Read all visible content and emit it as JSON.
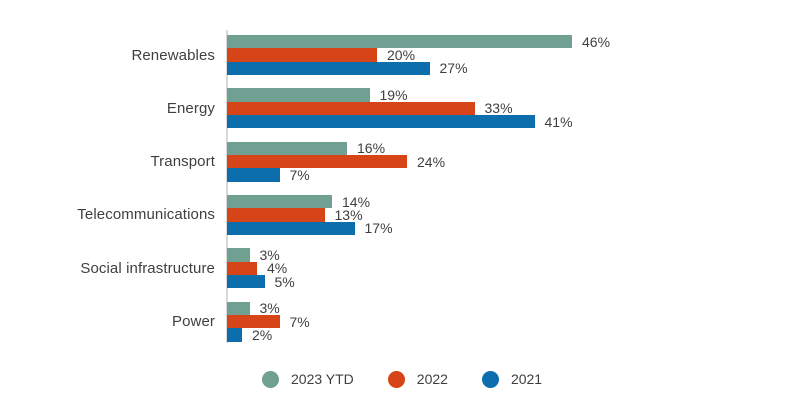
{
  "chart_data": {
    "type": "bar",
    "orientation": "horizontal",
    "title": "",
    "xlabel": "",
    "ylabel": "",
    "xlim": [
      0,
      50
    ],
    "grid": false,
    "legend_position": "bottom",
    "value_suffix": "%",
    "background_color": "#ffffff",
    "axis_line_color": "#d9d9d9",
    "text_color": "#3f3f3f",
    "categories": [
      "Renewables",
      "Energy",
      "Transport",
      "Telecommunications",
      "Social infrastructure",
      "Power"
    ],
    "series": [
      {
        "name": "2023 YTD",
        "color": "#6FA091",
        "values": [
          46,
          19,
          16,
          14,
          3,
          3
        ]
      },
      {
        "name": "2022",
        "color": "#D64418",
        "values": [
          20,
          33,
          24,
          13,
          4,
          7
        ]
      },
      {
        "name": "2021",
        "color": "#0D6EAE",
        "values": [
          27,
          41,
          7,
          17,
          5,
          2
        ]
      }
    ]
  }
}
